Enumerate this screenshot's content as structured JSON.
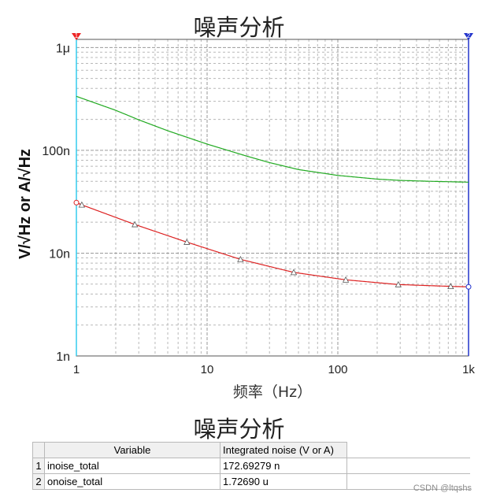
{
  "chart_data": {
    "type": "line",
    "title": "噪声分析",
    "xlabel": "频率（Hz）",
    "ylabel": "V/√Hz or A/√Hz",
    "xscale": "log",
    "yscale": "log",
    "xlim": [
      1,
      1000
    ],
    "ylim": [
      1e-09,
      1.2e-06
    ],
    "x_ticks": [
      {
        "value": 1,
        "label": "1"
      },
      {
        "value": 10,
        "label": "10"
      },
      {
        "value": 100,
        "label": "100"
      },
      {
        "value": 1000,
        "label": "1k"
      }
    ],
    "y_ticks": [
      {
        "value": 1e-09,
        "label": "1n"
      },
      {
        "value": 1e-08,
        "label": "10n"
      },
      {
        "value": 1e-07,
        "label": "100n"
      },
      {
        "value": 1e-06,
        "label": "1μ"
      }
    ],
    "grid": true,
    "cursors": [
      {
        "label": "1",
        "x": 1,
        "color": "#33ccee",
        "marker_color": "#ee2222"
      },
      {
        "label": "2",
        "x": 1000,
        "color": "#2233cc",
        "marker_color": "#2233cc"
      }
    ],
    "series": [
      {
        "color": "#22aa22",
        "marker": "none",
        "points": [
          [
            1,
            3.35e-07
          ],
          [
            2,
            2.45e-07
          ],
          [
            3,
            1.98e-07
          ],
          [
            5,
            1.55e-07
          ],
          [
            10,
            1.15e-07
          ],
          [
            20,
            8.8e-08
          ],
          [
            30,
            7.6e-08
          ],
          [
            50,
            6.5e-08
          ],
          [
            100,
            5.7e-08
          ],
          [
            200,
            5.25e-08
          ],
          [
            300,
            5.1e-08
          ],
          [
            500,
            5e-08
          ],
          [
            1000,
            4.9e-08
          ]
        ]
      },
      {
        "color": "#dd2222",
        "marker": "triangle",
        "points": [
          [
            1,
            3.1e-08
          ],
          [
            1.1,
            2.95e-08
          ],
          [
            2.8,
            1.9e-08
          ],
          [
            7,
            1.28e-08
          ],
          [
            18,
            8.7e-09
          ],
          [
            46,
            6.5e-09
          ],
          [
            115,
            5.5e-09
          ],
          [
            290,
            4.95e-09
          ],
          [
            730,
            4.75e-09
          ],
          [
            1000,
            4.7e-09
          ]
        ]
      }
    ]
  },
  "table": {
    "title": "噪声分析",
    "headers": [
      "Variable",
      "Integrated noise (V or A)"
    ],
    "rows": [
      {
        "index": "1",
        "variable": "inoise_total",
        "value": "172.69279 n"
      },
      {
        "index": "2",
        "variable": "onoise_total",
        "value": "1.72690 u"
      }
    ]
  },
  "watermark": "CSDN @ltqshs"
}
